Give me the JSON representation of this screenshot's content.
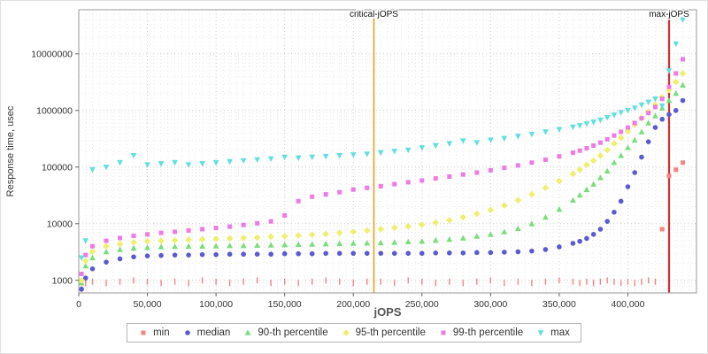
{
  "chart_data": {
    "type": "scatter",
    "xlabel": "jOPS",
    "ylabel": "Response time, usec",
    "grid": true,
    "legend_position": "bottom",
    "x_axis": {
      "min": 0,
      "max": 450000,
      "ticks": [
        {
          "v": 0,
          "label": "0"
        },
        {
          "v": 50000,
          "label": "50,000"
        },
        {
          "v": 100000,
          "label": "100,000"
        },
        {
          "v": 150000,
          "label": "150,000"
        },
        {
          "v": 200000,
          "label": "200,000"
        },
        {
          "v": 250000,
          "label": "250,000"
        },
        {
          "v": 300000,
          "label": "300,000"
        },
        {
          "v": 350000,
          "label": "350,000"
        },
        {
          "v": 400000,
          "label": "400,000"
        }
      ]
    },
    "y_axis": {
      "scale": "log",
      "min": 600,
      "max": 60000000,
      "ticks": [
        {
          "v": 1000,
          "label": "1000"
        },
        {
          "v": 10000,
          "label": "10000"
        },
        {
          "v": 100000,
          "label": "100000"
        },
        {
          "v": 1000000,
          "label": "1000000"
        },
        {
          "v": 10000000,
          "label": "10000000"
        }
      ]
    },
    "marker_lines": [
      {
        "id": "critical",
        "label": "critical-jOPS",
        "x": 215000,
        "color": "#E8A020",
        "width": 1.6
      },
      {
        "id": "maxline",
        "label": "max-jOPS",
        "x": 430000,
        "color": "#D23030",
        "width": 2.2
      }
    ],
    "x": [
      2000,
      5000,
      10000,
      20000,
      30000,
      40000,
      50000,
      60000,
      70000,
      80000,
      90000,
      100000,
      110000,
      120000,
      130000,
      140000,
      150000,
      160000,
      170000,
      180000,
      190000,
      200000,
      210000,
      220000,
      230000,
      240000,
      250000,
      260000,
      270000,
      280000,
      290000,
      300000,
      310000,
      320000,
      330000,
      340000,
      350000,
      360000,
      365000,
      370000,
      375000,
      380000,
      385000,
      390000,
      395000,
      400000,
      405000,
      410000,
      415000,
      420000,
      425000,
      430000,
      435000,
      440000
    ],
    "series": [
      {
        "id": "min",
        "label": "min",
        "color": "#F58484",
        "marker": "square",
        "low_marker": "vtick",
        "low_threshold": 2000,
        "values": [
          700,
          900,
          950,
          900,
          950,
          1000,
          950,
          900,
          950,
          900,
          1000,
          950,
          900,
          950,
          1000,
          900,
          950,
          900,
          950,
          1000,
          950,
          900,
          950,
          950,
          900,
          1000,
          950,
          900,
          950,
          900,
          950,
          1000,
          900,
          950,
          900,
          950,
          1000,
          950,
          900,
          950,
          900,
          950,
          1000,
          950,
          900,
          950,
          900,
          950,
          1000,
          950,
          8000,
          70000,
          90000,
          120000
        ]
      },
      {
        "id": "median",
        "label": "median",
        "color": "#5A5AD2",
        "marker": "circle",
        "values": [
          700,
          1100,
          1600,
          2100,
          2400,
          2600,
          2700,
          2750,
          2800,
          2800,
          2850,
          2850,
          2900,
          2900,
          2900,
          2900,
          2950,
          2950,
          2950,
          3000,
          3000,
          3000,
          3000,
          3000,
          3000,
          3000,
          3000,
          3050,
          3050,
          3050,
          3100,
          3100,
          3150,
          3200,
          3300,
          3500,
          3900,
          4500,
          4900,
          5500,
          6500,
          8000,
          11000,
          16000,
          25000,
          45000,
          80000,
          150000,
          280000,
          500000,
          700000,
          850000,
          1000000,
          1500000
        ]
      },
      {
        "id": "p90",
        "label": "90-th percentile",
        "color": "#7ADE7A",
        "marker": "triangle-up",
        "values": [
          900,
          1800,
          2500,
          3200,
          3500,
          3700,
          3800,
          3900,
          3950,
          4000,
          4000,
          4050,
          4100,
          4100,
          4150,
          4200,
          4250,
          4300,
          4350,
          4400,
          4450,
          4500,
          4550,
          4600,
          4700,
          4800,
          4900,
          5100,
          5300,
          5600,
          6000,
          6500,
          7200,
          8200,
          10000,
          13000,
          18000,
          26000,
          32000,
          40000,
          50000,
          65000,
          85000,
          120000,
          160000,
          220000,
          300000,
          420000,
          600000,
          800000,
          1100000,
          1500000,
          2000000,
          2800000
        ]
      },
      {
        "id": "p95",
        "label": "95-th percentile",
        "color": "#EFEF6E",
        "marker": "diamond",
        "values": [
          1000,
          2200,
          3200,
          4000,
          4400,
          4700,
          4900,
          5000,
          5100,
          5200,
          5300,
          5400,
          5500,
          5600,
          5700,
          5900,
          6000,
          6200,
          6400,
          6600,
          6900,
          7200,
          7600,
          8000,
          8500,
          9000,
          9600,
          10500,
          11500,
          13000,
          15000,
          17500,
          21000,
          26000,
          33000,
          43000,
          57000,
          76000,
          90000,
          110000,
          130000,
          160000,
          200000,
          260000,
          330000,
          430000,
          560000,
          730000,
          950000,
          1250000,
          1700000,
          2300000,
          3200000,
          4500000
        ]
      },
      {
        "id": "p99",
        "label": "99-th percentile",
        "color": "#EE7AE6",
        "marker": "square",
        "values": [
          1300,
          2800,
          4000,
          5000,
          5600,
          6100,
          6500,
          6900,
          7200,
          7600,
          8000,
          8400,
          8900,
          9500,
          10200,
          11000,
          14000,
          25000,
          30000,
          33000,
          36000,
          40000,
          43000,
          46000,
          50000,
          54000,
          58000,
          63000,
          68000,
          74000,
          80000,
          88000,
          97000,
          107000,
          120000,
          135000,
          155000,
          180000,
          195000,
          215000,
          240000,
          270000,
          310000,
          360000,
          420000,
          500000,
          600000,
          730000,
          900000,
          1150000,
          1600000,
          2600000,
          4500000,
          8000000
        ]
      },
      {
        "id": "max",
        "label": "max",
        "color": "#62DFDF",
        "marker": "triangle-down",
        "values": [
          2500,
          5000,
          90000,
          100000,
          120000,
          160000,
          110000,
          115000,
          120000,
          110000,
          115000,
          120000,
          125000,
          130000,
          135000,
          140000,
          150000,
          145000,
          150000,
          155000,
          160000,
          165000,
          170000,
          180000,
          190000,
          200000,
          220000,
          240000,
          260000,
          290000,
          270000,
          300000,
          320000,
          350000,
          380000,
          420000,
          460000,
          510000,
          540000,
          580000,
          620000,
          680000,
          750000,
          830000,
          920000,
          1000000,
          1100000,
          1250000,
          1400000,
          1600000,
          1200000,
          5000000,
          15000000,
          40000000
        ]
      }
    ]
  }
}
